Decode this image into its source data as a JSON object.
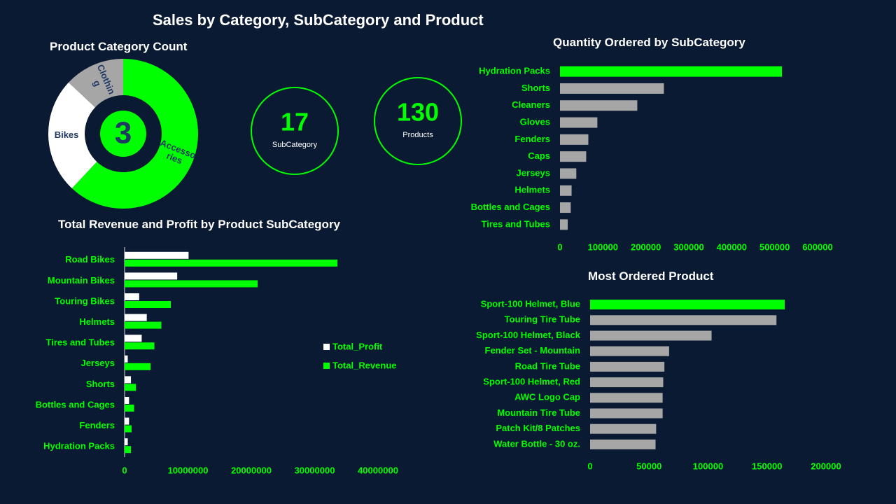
{
  "dashboard": {
    "title": "Sales by Category, SubCategory and Product",
    "colors": {
      "background": "#0b1a33",
      "accent": "#00ff00",
      "muted": "#a6a6a6",
      "white": "#ffffff",
      "dark_text": "#1f3864"
    }
  },
  "kpis": [
    {
      "value": "17",
      "label": "SubCategory"
    },
    {
      "value": "130",
      "label": "Products"
    }
  ],
  "chart_data": [
    {
      "id": "category-donut",
      "type": "pie",
      "title": "Product Category Count",
      "center_value": "3",
      "slices": [
        {
          "label": "Accesso ries",
          "value": 62,
          "color": "#00ff00"
        },
        {
          "label": "Bikes",
          "value": 25,
          "color": "#ffffff"
        },
        {
          "label": "Clothin g",
          "value": 13,
          "color": "#a6a6a6"
        }
      ]
    },
    {
      "id": "quantity-by-subcategory",
      "type": "bar",
      "orientation": "horizontal",
      "title": "Quantity Ordered by SubCategory",
      "categories": [
        "Hydration Packs",
        "Shorts",
        "Cleaners",
        "Gloves",
        "Fenders",
        "Caps",
        "Jerseys",
        "Helmets",
        "Bottles and Cages",
        "Tires and Tubes"
      ],
      "values": [
        517000,
        242000,
        180000,
        87000,
        66000,
        61000,
        38000,
        27000,
        25000,
        18000
      ],
      "xlim": [
        0,
        600000
      ],
      "xticks": [
        0,
        100000,
        200000,
        300000,
        400000,
        500000,
        600000
      ],
      "grid": false
    },
    {
      "id": "revenue-profit-by-subcategory",
      "type": "bar",
      "orientation": "horizontal",
      "title": "Total Revenue and Profit by Product SubCategory",
      "categories": [
        "Road Bikes",
        "Mountain Bikes",
        "Touring Bikes",
        "Helmets",
        "Tires and Tubes",
        "Jerseys",
        "Shorts",
        "Bottles and Cages",
        "Fenders",
        "Hydration Packs"
      ],
      "series": [
        {
          "name": "Total_Profit",
          "color": "#ffffff",
          "values": [
            10100000,
            8300000,
            2300000,
            3500000,
            2700000,
            500000,
            1000000,
            700000,
            700000,
            500000
          ]
        },
        {
          "name": "Total_Revenue",
          "color": "#00ff00",
          "values": [
            33600000,
            21000000,
            7300000,
            5800000,
            4700000,
            4100000,
            1800000,
            1500000,
            1100000,
            1000000
          ]
        }
      ],
      "xlim": [
        0,
        40000000
      ],
      "xticks": [
        0,
        10000000,
        20000000,
        30000000,
        40000000
      ],
      "legend_position": "right",
      "grid": false
    },
    {
      "id": "most-ordered-product",
      "type": "bar",
      "orientation": "horizontal",
      "title": "Most Ordered Product",
      "categories": [
        "Sport-100 Helmet, Blue",
        "Touring Tire Tube",
        "Sport-100 Helmet, Black",
        "Fender Set - Mountain",
        "Road Tire Tube",
        "Sport-100 Helmet, Red",
        "AWC Logo Cap",
        "Mountain Tire Tube",
        "Patch Kit/8 Patches",
        "Water Bottle - 30 oz."
      ],
      "values": [
        165000,
        158000,
        103000,
        67000,
        63000,
        62000,
        61500,
        61500,
        56000,
        55500
      ],
      "xlim": [
        0,
        200000
      ],
      "xticks": [
        0,
        50000,
        100000,
        150000,
        200000
      ],
      "grid": false
    }
  ]
}
